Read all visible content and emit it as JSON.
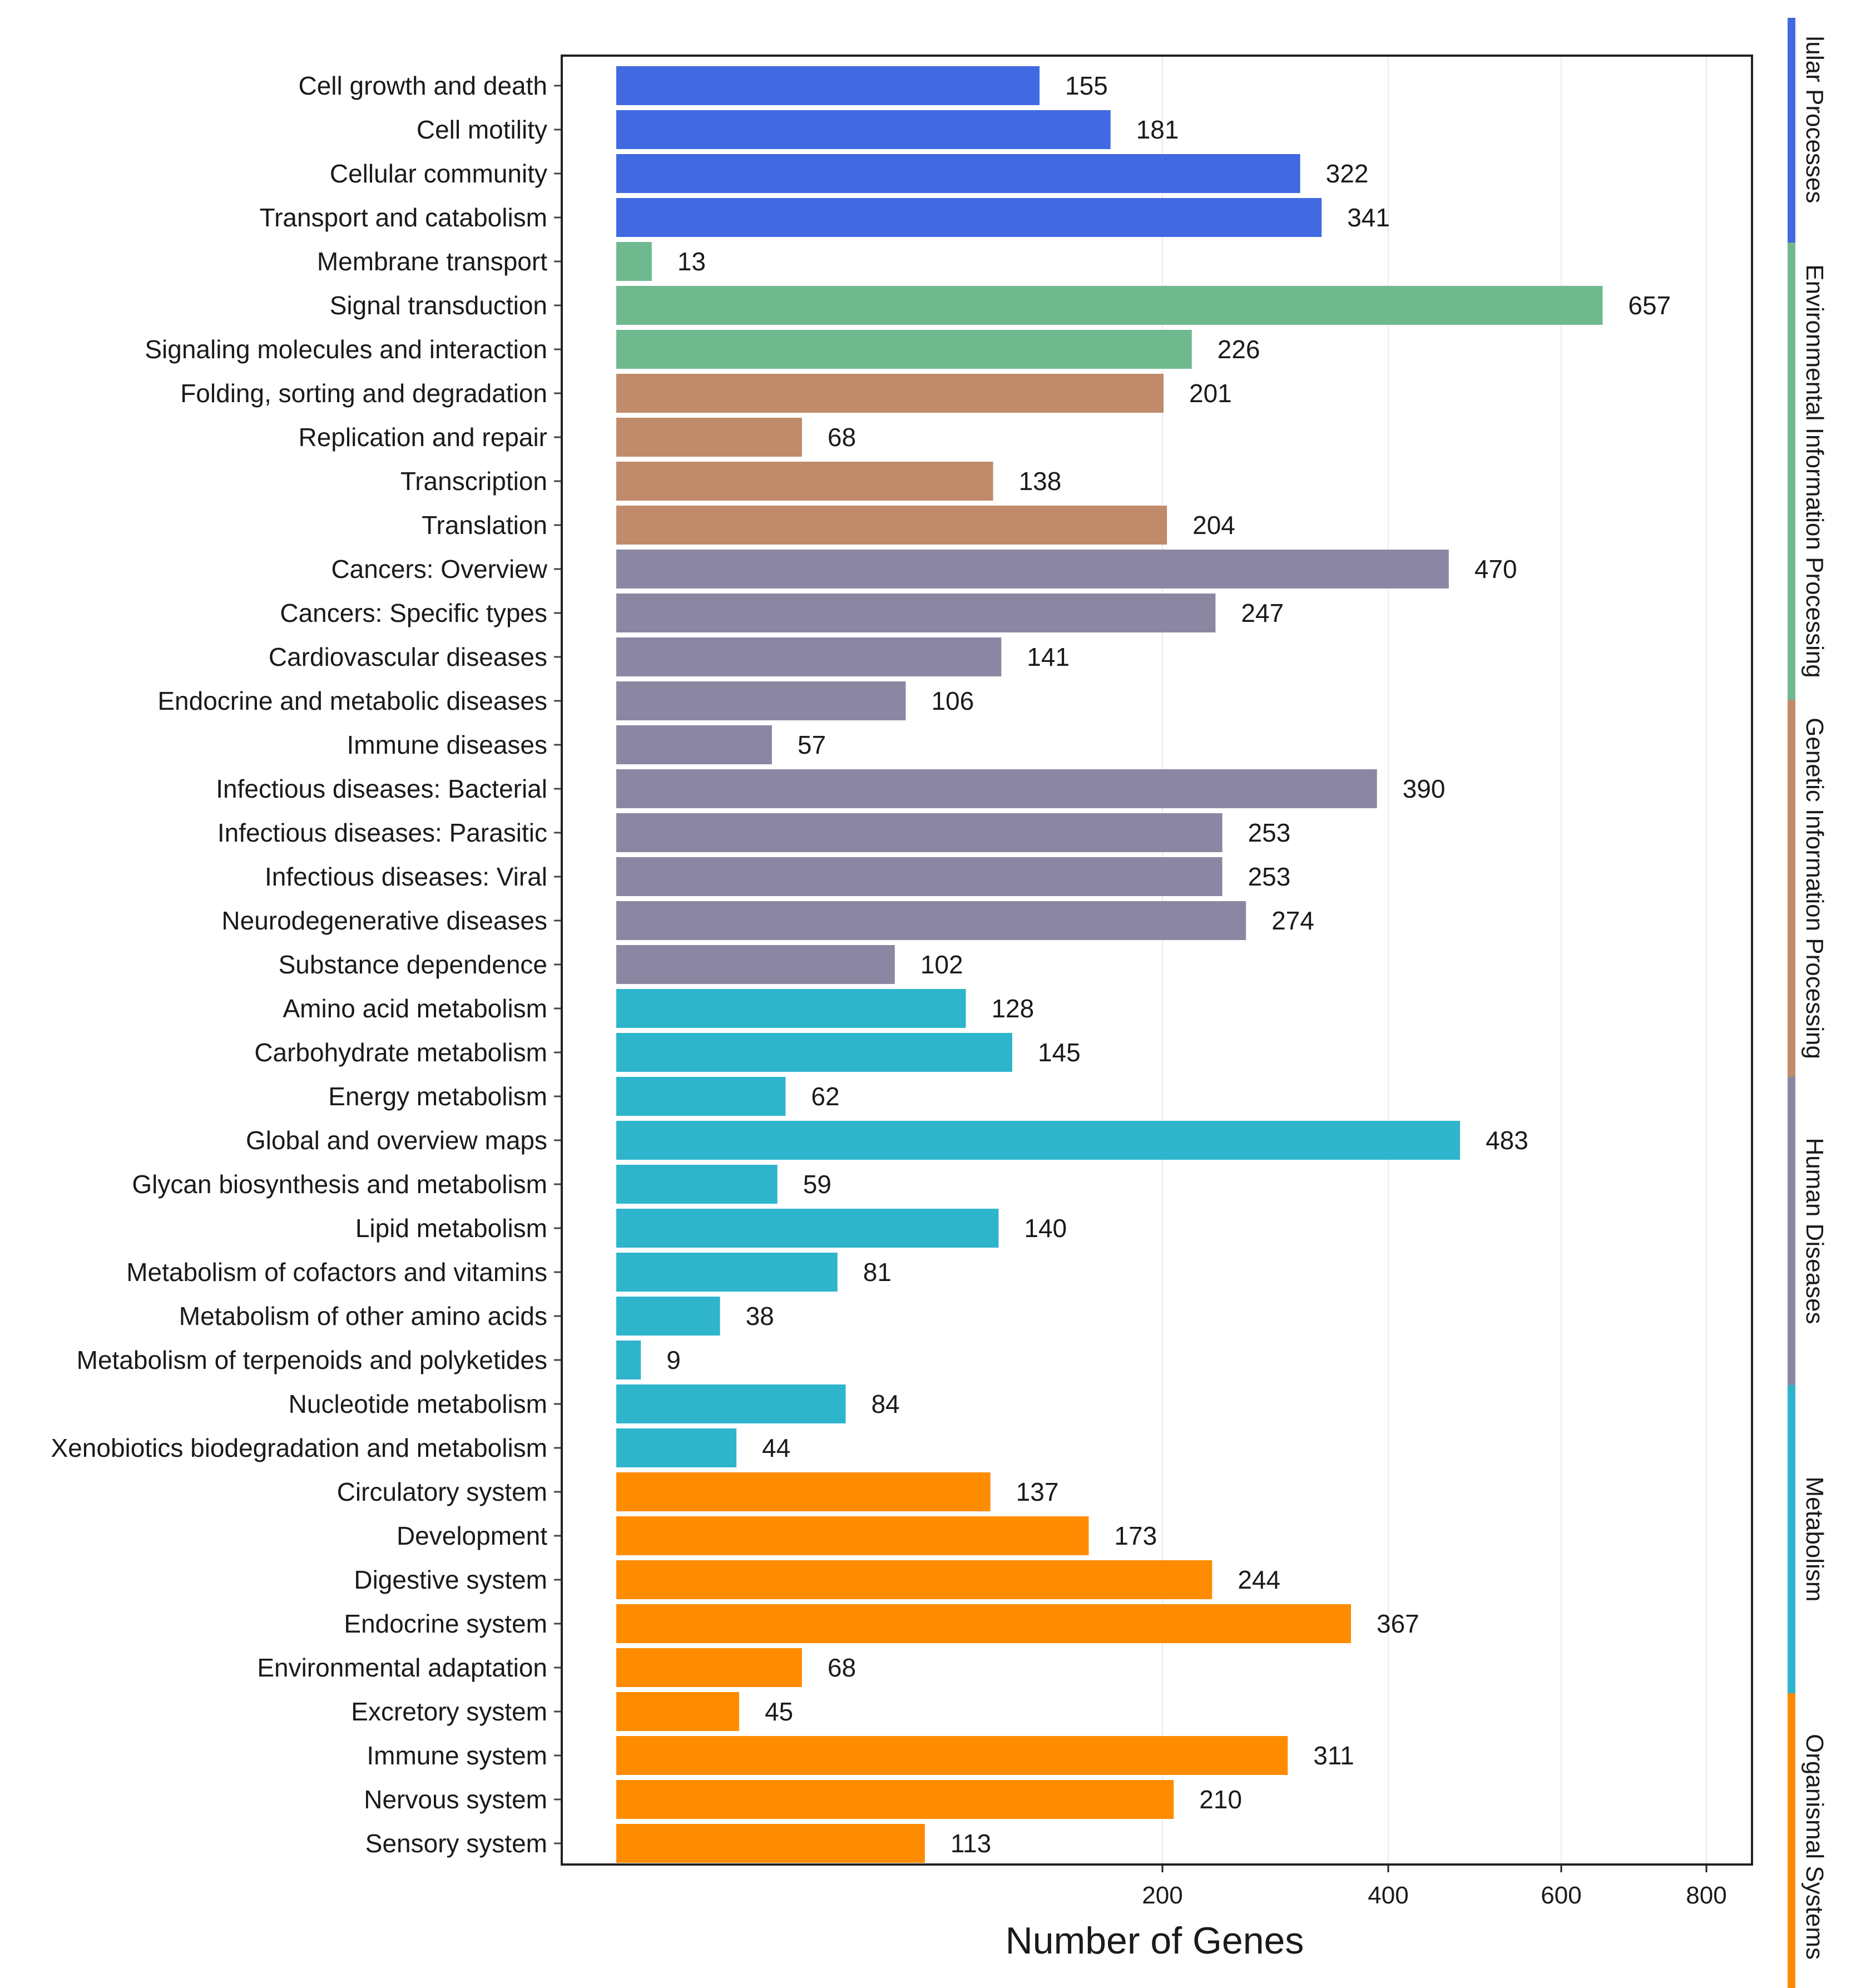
{
  "chart_data": {
    "type": "bar",
    "orientation": "horizontal",
    "xlabel": "Number of Genes",
    "x_ticks": [
      200,
      400,
      600,
      800
    ],
    "groups": [
      {
        "name": "Cellular Processes",
        "label": "lular Processes",
        "color": "#4169E1",
        "items": [
          {
            "category": "Cell growth and death",
            "value": 155
          },
          {
            "category": "Cell motility",
            "value": 181
          },
          {
            "category": "Cellular community",
            "value": 322
          },
          {
            "category": "Transport and catabolism",
            "value": 341
          }
        ]
      },
      {
        "name": "Environmental Information Processing",
        "label": "Environmental Information Processing",
        "color": "#6FB98F",
        "items": [
          {
            "category": "Membrane transport",
            "value": 13
          },
          {
            "category": "Signal transduction",
            "value": 657
          },
          {
            "category": "Signaling molecules and interaction",
            "value": 226
          }
        ]
      },
      {
        "name": "Genetic Information Processing",
        "label": "Genetic Information Processing",
        "color": "#C08B6A",
        "items": [
          {
            "category": "Folding, sorting and degradation",
            "value": 201
          },
          {
            "category": "Replication and repair",
            "value": 68
          },
          {
            "category": "Transcription",
            "value": 138
          },
          {
            "category": "Translation",
            "value": 204
          }
        ]
      },
      {
        "name": "Human Diseases",
        "label": "Human Diseases",
        "color": "#8B87A3",
        "items": [
          {
            "category": "Cancers: Overview",
            "value": 470
          },
          {
            "category": "Cancers: Specific types",
            "value": 247
          },
          {
            "category": "Cardiovascular diseases",
            "value": 141
          },
          {
            "category": "Endocrine and metabolic diseases",
            "value": 106
          },
          {
            "category": "Immune diseases",
            "value": 57
          },
          {
            "category": "Infectious diseases: Bacterial",
            "value": 390
          },
          {
            "category": "Infectious diseases: Parasitic",
            "value": 253
          },
          {
            "category": "Infectious diseases: Viral",
            "value": 253
          },
          {
            "category": "Neurodegenerative diseases",
            "value": 274
          },
          {
            "category": "Substance dependence",
            "value": 102
          }
        ]
      },
      {
        "name": "Metabolism",
        "label": "Metabolism",
        "color": "#2EB5CC",
        "items": [
          {
            "category": "Amino acid metabolism",
            "value": 128
          },
          {
            "category": "Carbohydrate metabolism",
            "value": 145
          },
          {
            "category": "Energy metabolism",
            "value": 62
          },
          {
            "category": "Global and overview maps",
            "value": 483
          },
          {
            "category": "Glycan biosynthesis and metabolism",
            "value": 59
          },
          {
            "category": "Lipid metabolism",
            "value": 140
          },
          {
            "category": "Metabolism of cofactors and vitamins",
            "value": 81
          },
          {
            "category": "Metabolism of other amino acids",
            "value": 38
          },
          {
            "category": "Metabolism of terpenoids and polyketides",
            "value": 9
          },
          {
            "category": "Nucleotide metabolism",
            "value": 84
          },
          {
            "category": "Xenobiotics biodegradation and metabolism",
            "value": 44
          }
        ]
      },
      {
        "name": "Organismal Systems",
        "label": "Organismal Systems",
        "color": "#FF8C00",
        "items": [
          {
            "category": "Circulatory system",
            "value": 137
          },
          {
            "category": "Development",
            "value": 173
          },
          {
            "category": "Digestive system",
            "value": 244
          },
          {
            "category": "Endocrine system",
            "value": 367
          },
          {
            "category": "Environmental adaptation",
            "value": 68
          },
          {
            "category": "Excretory system",
            "value": 45
          },
          {
            "category": "Immune system",
            "value": 311
          },
          {
            "category": "Nervous system",
            "value": 210
          },
          {
            "category": "Sensory system",
            "value": 113
          }
        ]
      }
    ]
  }
}
